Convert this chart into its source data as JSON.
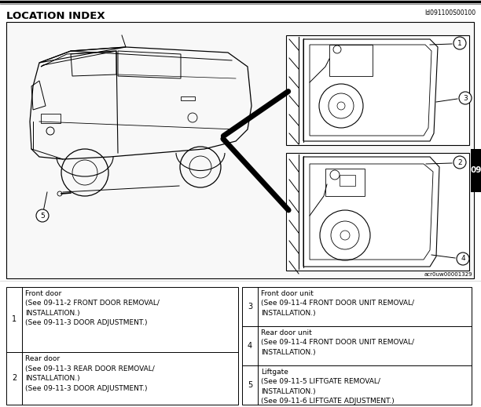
{
  "title": "LOCATION INDEX",
  "title_id": "Id091100S00100",
  "diagram_id": "acr0uw00001329",
  "bg_color": "#ffffff",
  "border_color": "#000000",
  "table_left": [
    {
      "num": "1",
      "label": "Front door",
      "lines": [
        "(See 09-11-2 FRONT DOOR REMOVAL/",
        "INSTALLATION.)",
        "(See 09-11-3 DOOR ADJUSTMENT.)"
      ]
    },
    {
      "num": "2",
      "label": "Rear door",
      "lines": [
        "(See 09-11-3 REAR DOOR REMOVAL/",
        "INSTALLATION.)",
        "(See 09-11-3 DOOR ADJUSTMENT.)"
      ]
    }
  ],
  "table_right": [
    {
      "num": "3",
      "label": "Front door unit",
      "lines": [
        "(See 09-11-4 FRONT DOOR UNIT REMOVAL/",
        "INSTALLATION.)"
      ]
    },
    {
      "num": "4",
      "label": "Rear door unit",
      "lines": [
        "(See 09-11-4 FRONT DOOR UNIT REMOVAL/",
        "INSTALLATION.)"
      ]
    },
    {
      "num": "5",
      "label": "Liftgate",
      "lines": [
        "(See 09-11-5 LIFTGATE REMOVAL/",
        "INSTALLATION.)",
        "(See 09-11-6 LIFTGATE ADJUSTMENT.)"
      ]
    }
  ],
  "sidebar_color": "#000000",
  "sidebar_text": "09",
  "sidebar_text_color": "#ffffff"
}
